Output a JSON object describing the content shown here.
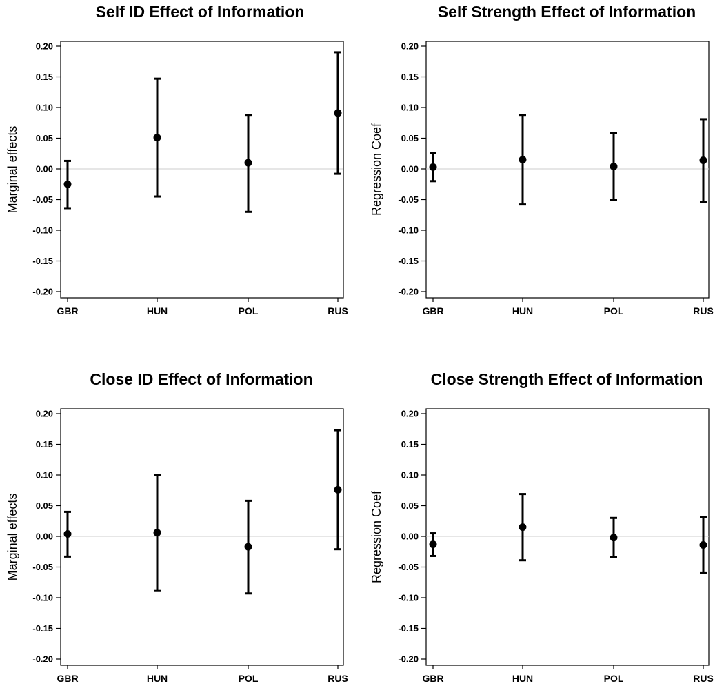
{
  "chart_data": [
    {
      "type": "scatter",
      "title": "Self ID Effect of Information",
      "ylabel": "Marginal effects",
      "categories": [
        "GBR",
        "HUN",
        "POL",
        "RUS"
      ],
      "values": [
        -0.025,
        0.051,
        0.01,
        0.091
      ],
      "ci_low": [
        -0.064,
        -0.045,
        -0.07,
        -0.008
      ],
      "ci_high": [
        0.013,
        0.147,
        0.088,
        0.19
      ],
      "ylim": [
        -0.2,
        0.2
      ],
      "yticks": [
        "0.20",
        "0.15",
        "0.10",
        "0.05",
        "0.00",
        "-0.05",
        "-0.10",
        "-0.15",
        "-0.20"
      ],
      "reference_line": 0
    },
    {
      "type": "scatter",
      "title": "Self Strength Effect of Information",
      "ylabel": "Regression Coef",
      "categories": [
        "GBR",
        "HUN",
        "POL",
        "RUS"
      ],
      "values": [
        0.003,
        0.015,
        0.004,
        0.014
      ],
      "ci_low": [
        -0.02,
        -0.058,
        -0.051,
        -0.054
      ],
      "ci_high": [
        0.026,
        0.088,
        0.059,
        0.081
      ],
      "ylim": [
        -0.2,
        0.2
      ],
      "yticks": [
        "0.20",
        "0.15",
        "0.10",
        "0.05",
        "0.00",
        "-0.05",
        "-0.10",
        "-0.15",
        "-0.20"
      ],
      "reference_line": 0
    },
    {
      "type": "scatter",
      "title": "Close ID Effect of Information",
      "ylabel": "Marginal effects",
      "categories": [
        "GBR",
        "HUN",
        "POL",
        "RUS"
      ],
      "values": [
        0.004,
        0.006,
        -0.017,
        0.076
      ],
      "ci_low": [
        -0.033,
        -0.089,
        -0.093,
        -0.021
      ],
      "ci_high": [
        0.04,
        0.1,
        0.058,
        0.173
      ],
      "ylim": [
        -0.2,
        0.2
      ],
      "yticks": [
        "0.20",
        "0.15",
        "0.10",
        "0.05",
        "0.00",
        "-0.05",
        "-0.10",
        "-0.15",
        "-0.20"
      ],
      "reference_line": 0
    },
    {
      "type": "scatter",
      "title": "Close Strength Effect of Information",
      "ylabel": "Regression Coef",
      "categories": [
        "GBR",
        "HUN",
        "POL",
        "RUS"
      ],
      "values": [
        -0.013,
        0.015,
        -0.002,
        -0.014
      ],
      "ci_low": [
        -0.032,
        -0.039,
        -0.034,
        -0.06
      ],
      "ci_high": [
        0.005,
        0.069,
        0.03,
        0.031
      ],
      "ylim": [
        -0.2,
        0.2
      ],
      "yticks": [
        "0.20",
        "0.15",
        "0.10",
        "0.05",
        "0.00",
        "-0.05",
        "-0.10",
        "-0.15",
        "-0.20"
      ],
      "reference_line": 0
    }
  ]
}
